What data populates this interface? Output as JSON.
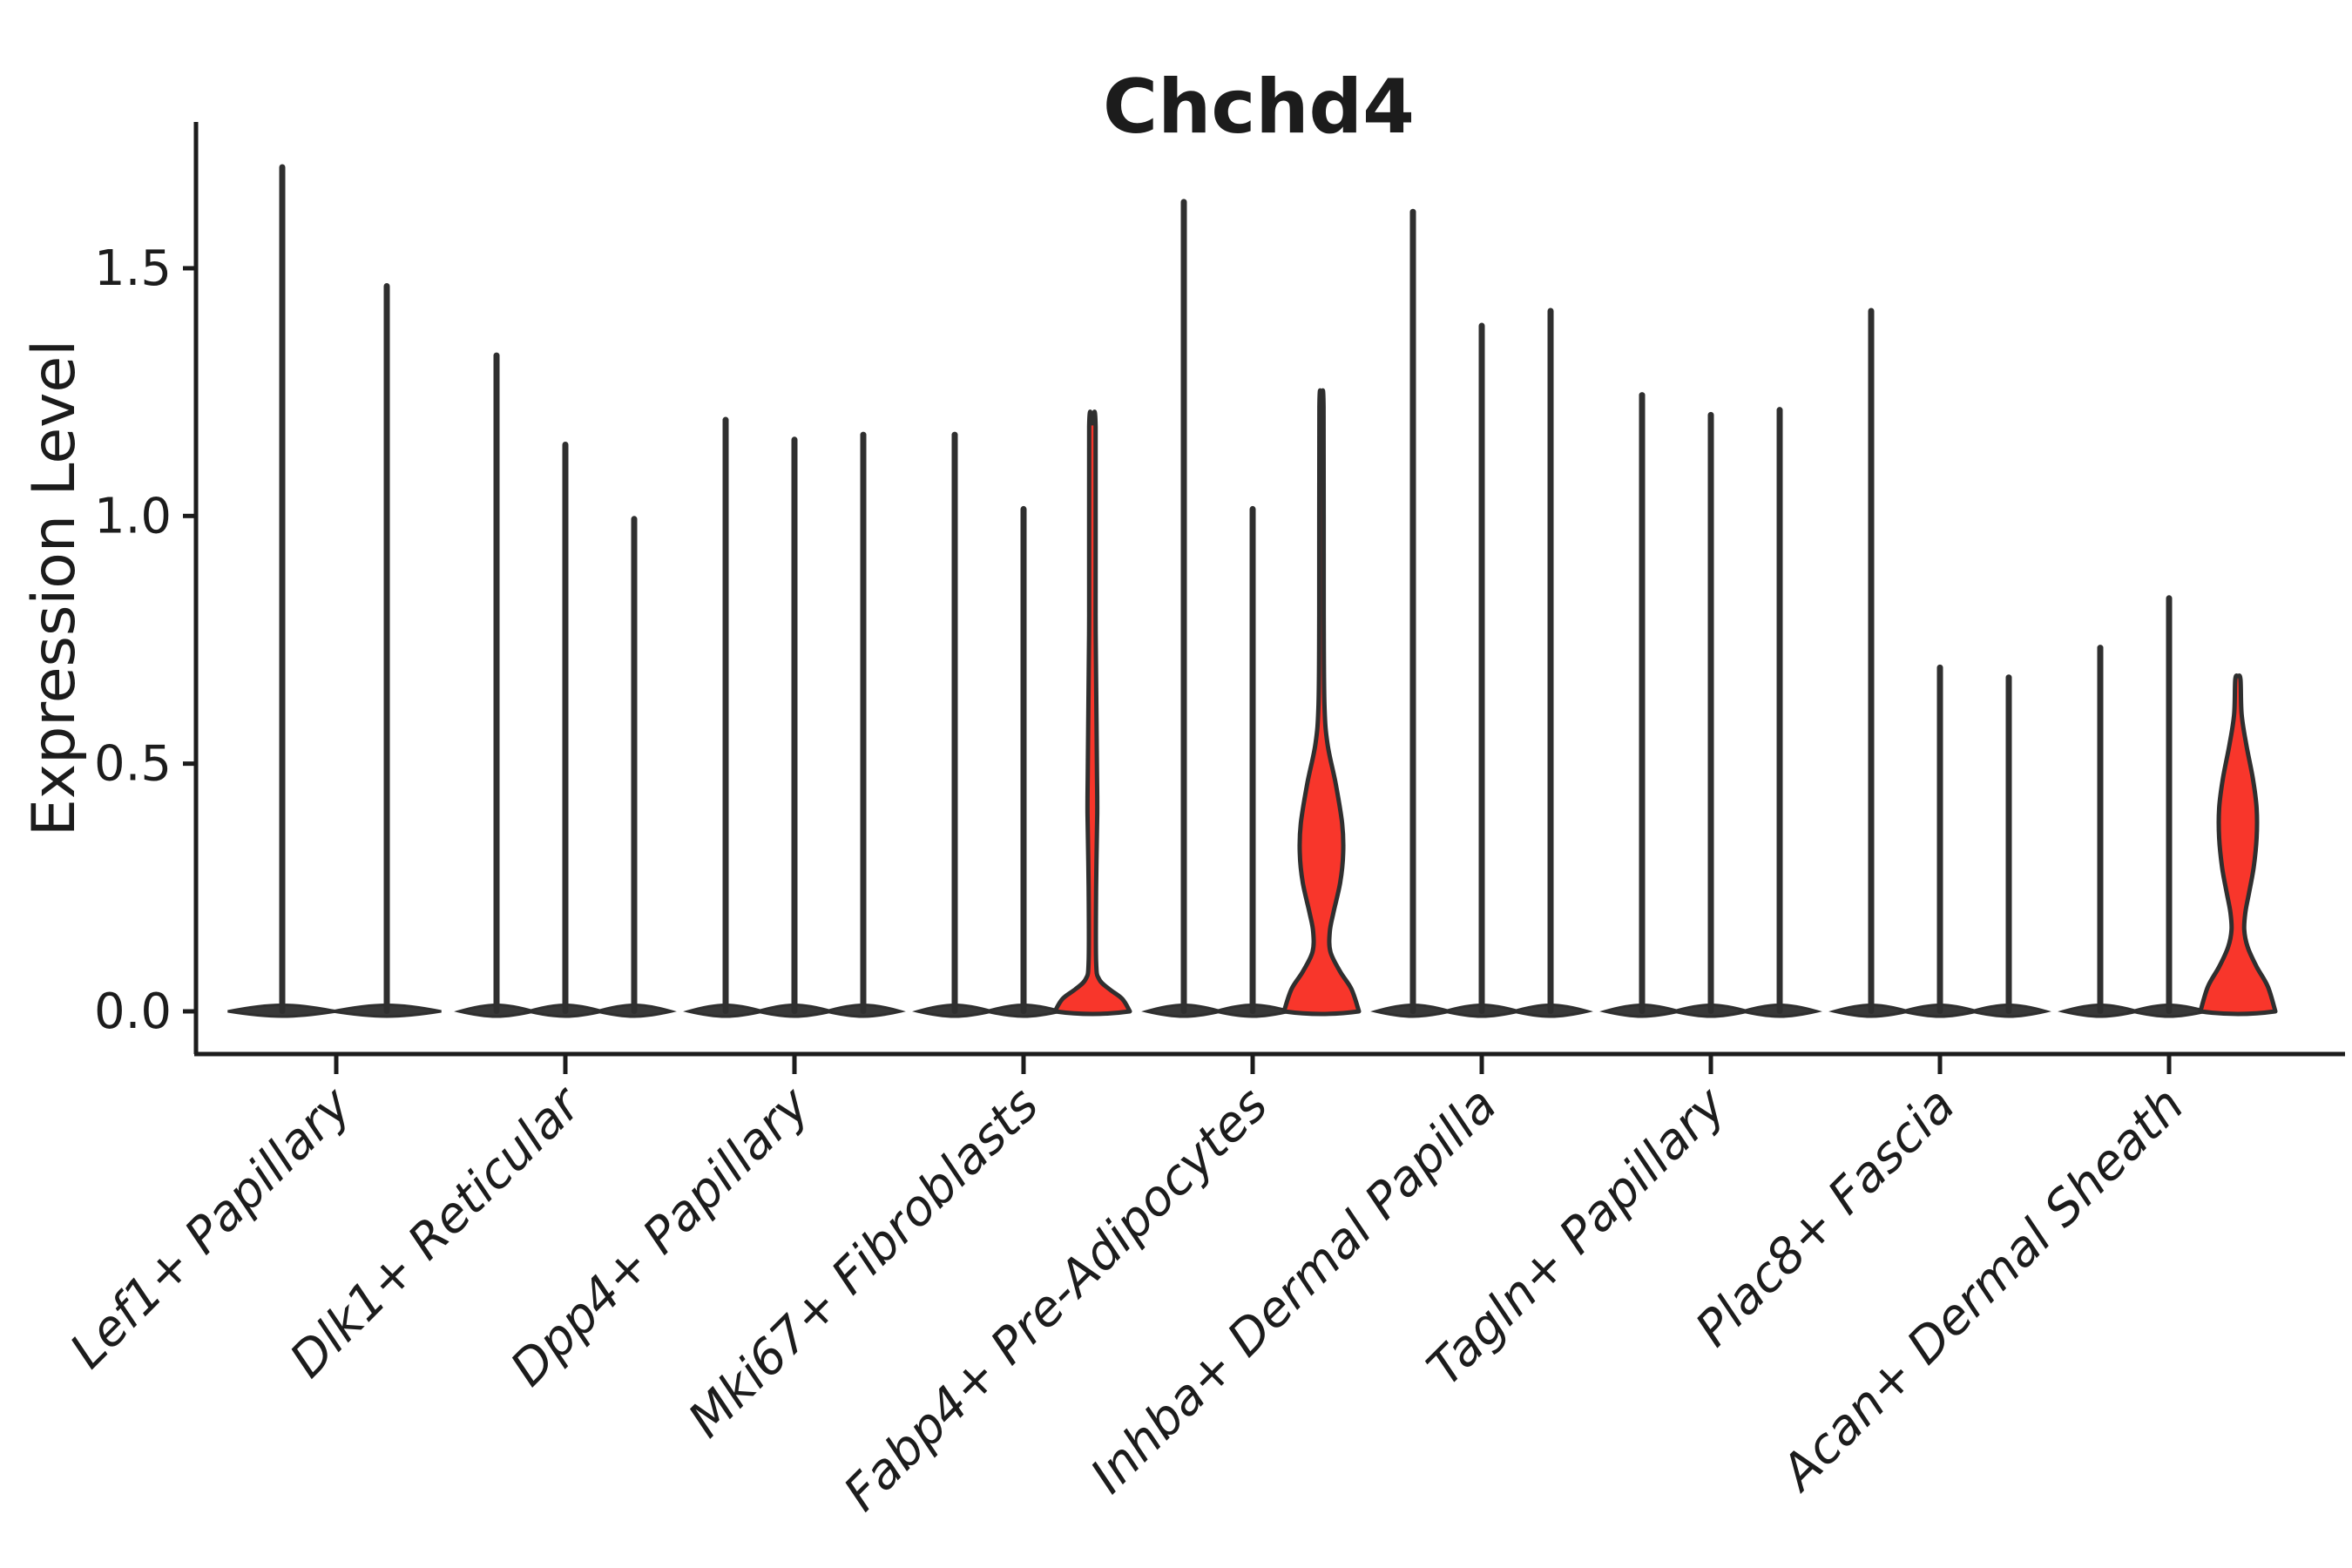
{
  "title": "Chchd4",
  "y_axis": {
    "label": "Expression Level",
    "tick_labels": [
      "0.0",
      "0.5",
      "1.0",
      "1.5"
    ],
    "tick_values": [
      0.0,
      0.5,
      1.0,
      1.5
    ]
  },
  "colors": {
    "axis": "#1c1c1c",
    "violin_stroke": "#2f2f2f",
    "violin_dark_fill": "#383838",
    "highlight_red": "#f8362b",
    "background": "#ffffff"
  },
  "chart_data": {
    "type": "violin",
    "title": "Chchd4",
    "xlabel": "",
    "ylabel": "Expression Level",
    "ylim": [
      -0.09,
      1.8
    ],
    "yticks": [
      0.0,
      0.5,
      1.0,
      1.5
    ],
    "grid": false,
    "legend": "none",
    "categories": [
      "Lef1+ Papillary",
      "Dlk1+ Reticular",
      "Dpp4+ Papillary",
      "Mki67+ Fibroblasts",
      "Fabp4+ Pre-Adipocytes",
      "Inhba+ Dermal Papilla",
      "Tagln+ Papillary",
      "Plac8+ Fascia",
      "Acan+ Dermal Sheath"
    ],
    "groups": [
      {
        "label": "Lef1+ Papillary",
        "violins": [
          {
            "max": 1.71,
            "red": false
          },
          {
            "max": 1.47,
            "red": false
          }
        ]
      },
      {
        "label": "Dlk1+ Reticular",
        "violins": [
          {
            "max": 1.33,
            "red": false
          },
          {
            "max": 1.15,
            "red": false
          },
          {
            "max": 1.0,
            "red": false
          }
        ]
      },
      {
        "label": "Dpp4+ Papillary",
        "violins": [
          {
            "max": 1.2,
            "red": false
          },
          {
            "max": 1.16,
            "red": false
          },
          {
            "max": 1.17,
            "red": false
          }
        ]
      },
      {
        "label": "Mki67+ Fibroblasts",
        "violins": [
          {
            "max": 1.17,
            "red": false
          },
          {
            "max": 1.02,
            "red": false
          },
          {
            "max": 1.18,
            "red": true,
            "profile": [
              [
                1.18,
                0.085
              ],
              [
                0.8,
                0.085
              ],
              [
                0.5,
                0.12
              ],
              [
                0.4,
                0.13
              ],
              [
                0.25,
                0.1
              ],
              [
                0.1,
                0.1
              ],
              [
                0.065,
                0.18
              ],
              [
                0.045,
                0.45
              ],
              [
                0.025,
                0.8
              ],
              [
                0.0,
                1.0
              ]
            ]
          }
        ]
      },
      {
        "label": "Fabp4+ Pre-Adipocytes",
        "violins": [
          {
            "max": 1.64,
            "red": false
          },
          {
            "max": 1.02,
            "red": false
          },
          {
            "max": 1.22,
            "red": true,
            "profile": [
              [
                1.22,
                0.055
              ],
              [
                0.8,
                0.06
              ],
              [
                0.62,
                0.08
              ],
              [
                0.54,
                0.16
              ],
              [
                0.46,
                0.38
              ],
              [
                0.38,
                0.55
              ],
              [
                0.32,
                0.58
              ],
              [
                0.26,
                0.5
              ],
              [
                0.2,
                0.32
              ],
              [
                0.16,
                0.22
              ],
              [
                0.12,
                0.24
              ],
              [
                0.08,
                0.5
              ],
              [
                0.045,
                0.8
              ],
              [
                0.0,
                1.0
              ]
            ]
          }
        ]
      },
      {
        "label": "Inhba+ Dermal Papilla",
        "violins": [
          {
            "max": 1.62,
            "red": false
          },
          {
            "max": 1.39,
            "red": false
          },
          {
            "max": 1.42,
            "red": false
          }
        ]
      },
      {
        "label": "Tagln+ Papillary",
        "violins": [
          {
            "max": 1.25,
            "red": false
          },
          {
            "max": 1.21,
            "red": false
          },
          {
            "max": 1.22,
            "red": false
          }
        ]
      },
      {
        "label": "Plac8+ Fascia",
        "violins": [
          {
            "max": 1.42,
            "red": false
          },
          {
            "max": 0.7,
            "red": false
          },
          {
            "max": 0.68,
            "red": false
          }
        ]
      },
      {
        "label": "Acan+ Dermal Sheath",
        "violins": [
          {
            "max": 0.74,
            "red": false
          },
          {
            "max": 0.84,
            "red": false
          },
          {
            "max": 0.67,
            "red": true,
            "profile": [
              [
                0.67,
                0.07
              ],
              [
                0.6,
                0.1
              ],
              [
                0.54,
                0.22
              ],
              [
                0.47,
                0.4
              ],
              [
                0.41,
                0.5
              ],
              [
                0.35,
                0.5
              ],
              [
                0.29,
                0.42
              ],
              [
                0.24,
                0.3
              ],
              [
                0.2,
                0.2
              ],
              [
                0.165,
                0.17
              ],
              [
                0.13,
                0.26
              ],
              [
                0.09,
                0.5
              ],
              [
                0.05,
                0.8
              ],
              [
                0.0,
                1.0
              ]
            ]
          }
        ]
      }
    ]
  }
}
